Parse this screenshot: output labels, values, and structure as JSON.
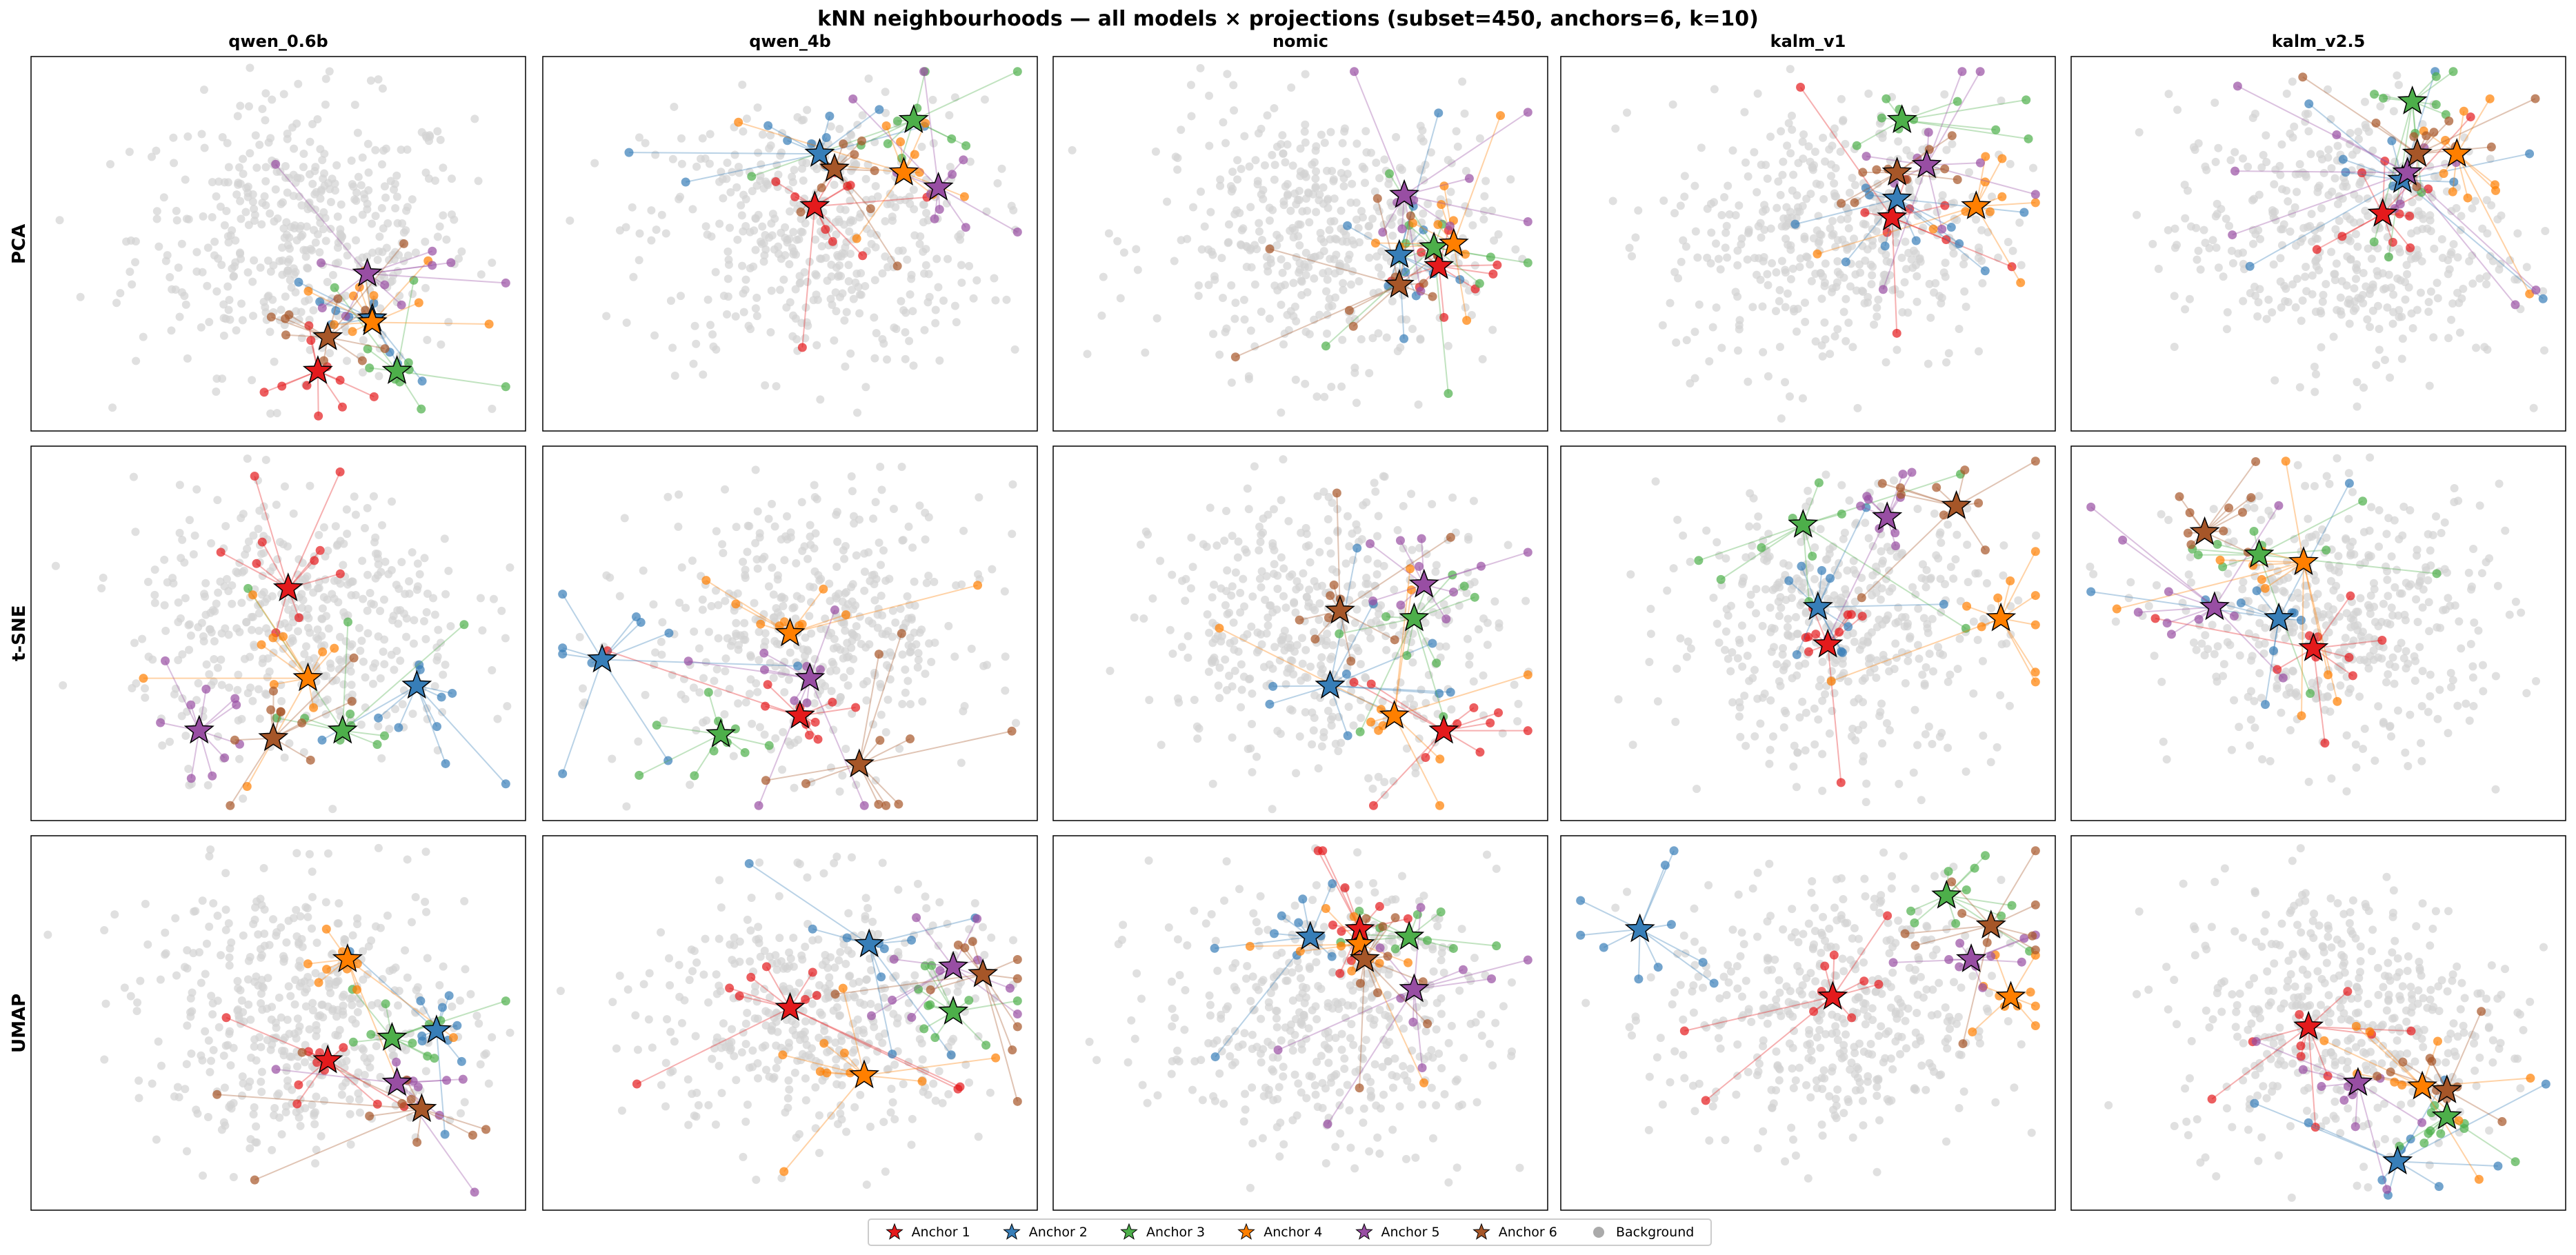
{
  "chart_data": {
    "type": "scatter",
    "title": "kNN neighbourhoods — all models × projections  (subset=450, anchors=6, k=10)",
    "models": [
      "qwen_0.6b",
      "qwen_4b",
      "nomic",
      "kalm_v1",
      "kalm_v2.5"
    ],
    "projections": [
      "PCA",
      "t-SNE",
      "UMAP"
    ],
    "subset": 450,
    "anchors": 6,
    "k": 10,
    "ticks": false,
    "grid": false,
    "legend_position": "bottom-center",
    "legend": [
      "Anchor 1",
      "Anchor 2",
      "Anchor 3",
      "Anchor 4",
      "Anchor 5",
      "Anchor 6",
      "Background"
    ],
    "colors": [
      "#e41a1c",
      "#377eb8",
      "#4daf4a",
      "#ff7f00",
      "#984ea3",
      "#a65628"
    ],
    "background_color": "#d3d3d3",
    "anchor_positions": {
      "PCA": {
        "qwen_0.6b": [
          [
            58,
            16
          ],
          [
            69,
            30
          ],
          [
            74,
            16
          ],
          [
            69,
            29
          ],
          [
            68,
            42
          ],
          [
            60,
            25
          ]
        ],
        "qwen_4b": [
          [
            55,
            60
          ],
          [
            56,
            74
          ],
          [
            75,
            83
          ],
          [
            73,
            69
          ],
          [
            80,
            65
          ],
          [
            59,
            70
          ]
        ],
        "nomic": [
          [
            78,
            44
          ],
          [
            70,
            47
          ],
          [
            77,
            49
          ],
          [
            81,
            50
          ],
          [
            71,
            63
          ],
          [
            70,
            39
          ]
        ],
        "kalm_v1": [
          [
            67,
            57
          ],
          [
            68,
            62
          ],
          [
            69,
            83
          ],
          [
            84,
            60
          ],
          [
            74,
            71
          ],
          [
            68,
            69
          ]
        ],
        "kalm_v2.5": [
          [
            63,
            58
          ],
          [
            67,
            67
          ],
          [
            69,
            88
          ],
          [
            78,
            74
          ],
          [
            68,
            69
          ],
          [
            70,
            74
          ]
        ]
      },
      "t-SNE": {
        "qwen_0.6b": [
          [
            52,
            62
          ],
          [
            78,
            36
          ],
          [
            63,
            24
          ],
          [
            56,
            38
          ],
          [
            34,
            24
          ],
          [
            49,
            22
          ]
        ],
        "qwen_4b": [
          [
            52,
            28
          ],
          [
            12,
            43
          ],
          [
            36,
            23
          ],
          [
            50,
            50
          ],
          [
            54,
            38
          ],
          [
            64,
            15
          ]
        ],
        "nomic": [
          [
            79,
            24
          ],
          [
            56,
            36
          ],
          [
            73,
            54
          ],
          [
            69,
            28
          ],
          [
            75,
            63
          ],
          [
            58,
            56
          ]
        ],
        "kalm_v1": [
          [
            54,
            47
          ],
          [
            52,
            57
          ],
          [
            49,
            79
          ],
          [
            89,
            54
          ],
          [
            66,
            81
          ],
          [
            80,
            84
          ]
        ],
        "kalm_v2.5": [
          [
            49,
            46
          ],
          [
            42,
            54
          ],
          [
            38,
            71
          ],
          [
            47,
            69
          ],
          [
            29,
            57
          ],
          [
            27,
            77
          ]
        ]
      },
      "UMAP": {
        "qwen_0.6b": [
          [
            60,
            40
          ],
          [
            82,
            48
          ],
          [
            73,
            46
          ],
          [
            64,
            67
          ],
          [
            74,
            34
          ],
          [
            79,
            27
          ]
        ],
        "qwen_4b": [
          [
            50,
            54
          ],
          [
            66,
            71
          ],
          [
            83,
            53
          ],
          [
            65,
            36
          ],
          [
            83,
            65
          ],
          [
            89,
            63
          ]
        ],
        "nomic": [
          [
            62,
            75
          ],
          [
            52,
            73
          ],
          [
            72,
            73
          ],
          [
            62,
            71
          ],
          [
            73,
            59
          ],
          [
            63,
            67
          ]
        ],
        "kalm_v1": [
          [
            55,
            57
          ],
          [
            16,
            75
          ],
          [
            78,
            84
          ],
          [
            91,
            57
          ],
          [
            83,
            67
          ],
          [
            87,
            76
          ]
        ],
        "kalm_v2.5": [
          [
            48,
            49
          ],
          [
            66,
            13
          ],
          [
            76,
            25
          ],
          [
            71,
            33
          ],
          [
            58,
            34
          ],
          [
            76,
            32
          ]
        ]
      }
    }
  }
}
